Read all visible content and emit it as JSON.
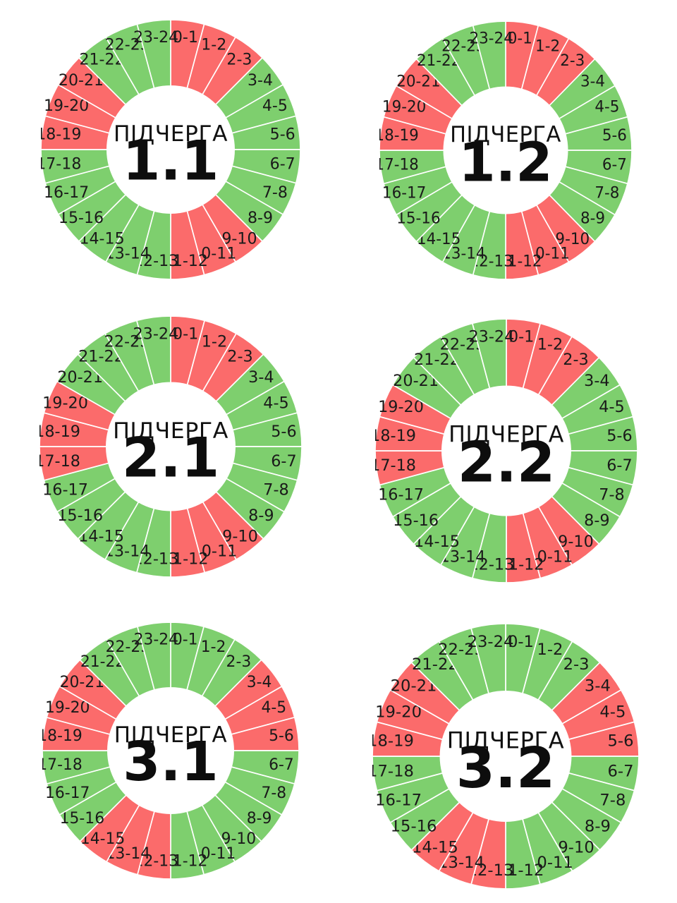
{
  "colors": {
    "on": "#7ecf6e",
    "off": "#fb6b6b",
    "separator": "#ffffff"
  },
  "hours": [
    "0-1",
    "1-2",
    "2-3",
    "3-4",
    "4-5",
    "5-6",
    "6-7",
    "7-8",
    "8-9",
    "9-10",
    "10-11",
    "11-12",
    "12-13",
    "13-14",
    "14-15",
    "15-16",
    "16-17",
    "17-18",
    "18-19",
    "19-20",
    "20-21",
    "21-22",
    "22-23",
    "23-24"
  ],
  "queues": [
    {
      "caption": "ПІДЧЕРГА",
      "number": "1.1",
      "state": [
        "off",
        "off",
        "off",
        "on",
        "on",
        "on",
        "on",
        "on",
        "on",
        "off",
        "off",
        "off",
        "on",
        "on",
        "on",
        "on",
        "on",
        "on",
        "off",
        "off",
        "off",
        "on",
        "on",
        "on"
      ]
    },
    {
      "caption": "ПІДЧЕРГА",
      "number": "1.2",
      "state": [
        "off",
        "off",
        "off",
        "on",
        "on",
        "on",
        "on",
        "on",
        "on",
        "off",
        "off",
        "off",
        "on",
        "on",
        "on",
        "on",
        "on",
        "on",
        "off",
        "off",
        "off",
        "on",
        "on",
        "on"
      ]
    },
    {
      "caption": "ПІДЧЕРГА",
      "number": "2.1",
      "state": [
        "off",
        "off",
        "off",
        "on",
        "on",
        "on",
        "on",
        "on",
        "on",
        "off",
        "off",
        "off",
        "on",
        "on",
        "on",
        "on",
        "on",
        "off",
        "off",
        "off",
        "on",
        "on",
        "on",
        "on"
      ]
    },
    {
      "caption": "ПІДЧЕРГА",
      "number": "2.2",
      "state": [
        "off",
        "off",
        "off",
        "on",
        "on",
        "on",
        "on",
        "on",
        "on",
        "off",
        "off",
        "off",
        "on",
        "on",
        "on",
        "on",
        "on",
        "off",
        "off",
        "off",
        "on",
        "on",
        "on",
        "on"
      ]
    },
    {
      "caption": "ПІДЧЕРГА",
      "number": "3.1",
      "state": [
        "on",
        "on",
        "on",
        "off",
        "off",
        "off",
        "on",
        "on",
        "on",
        "on",
        "on",
        "on",
        "off",
        "off",
        "off",
        "on",
        "on",
        "on",
        "off",
        "off",
        "off",
        "on",
        "on",
        "on"
      ]
    },
    {
      "caption": "ПІДЧЕРГА",
      "number": "3.2",
      "state": [
        "on",
        "on",
        "on",
        "off",
        "off",
        "off",
        "on",
        "on",
        "on",
        "on",
        "on",
        "on",
        "off",
        "off",
        "off",
        "on",
        "on",
        "on",
        "off",
        "off",
        "off",
        "on",
        "on",
        "on"
      ]
    }
  ]
}
